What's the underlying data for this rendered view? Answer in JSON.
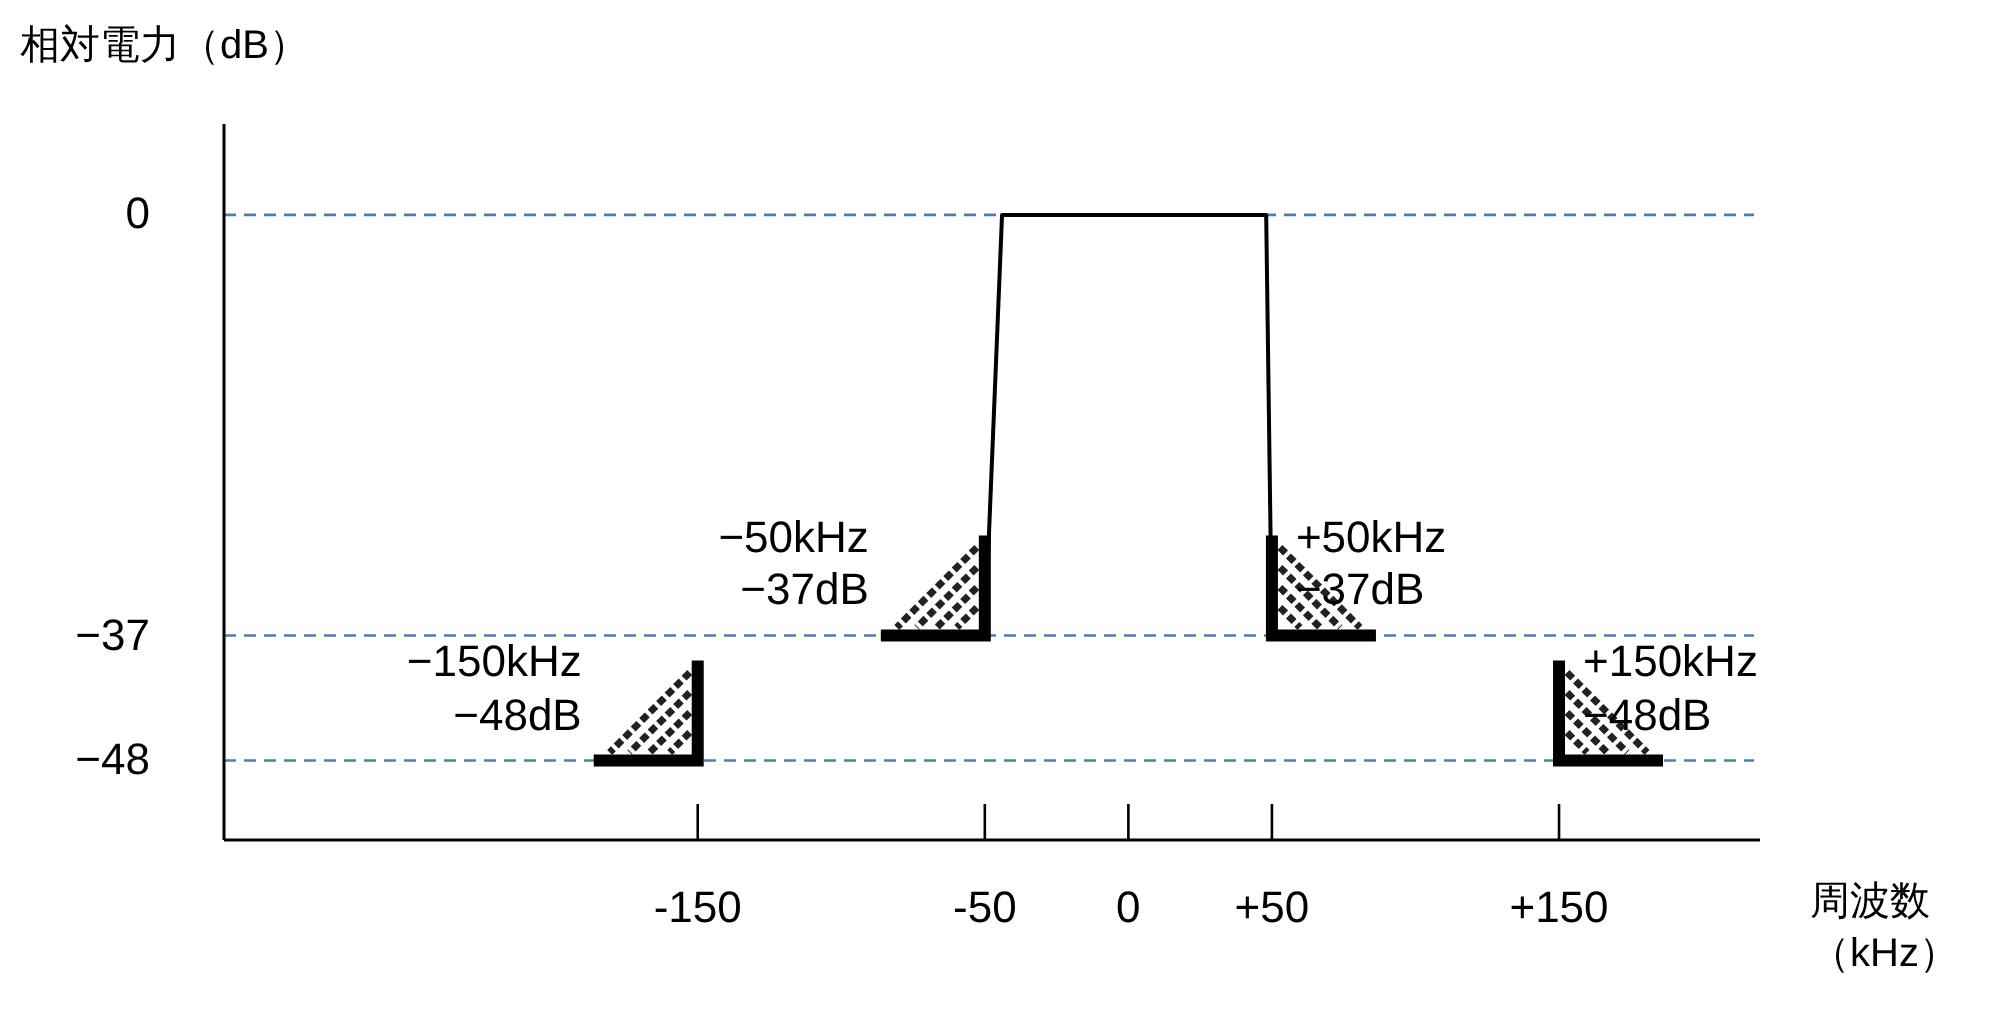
{
  "chart_data": {
    "type": "line",
    "ylabel": "相対電力（dB）",
    "xlabel": "周波数（kHz）",
    "x": [
      -50,
      -44,
      48,
      50
    ],
    "values": [
      -37,
      0,
      0,
      -37
    ],
    "color": "#000000",
    "xlim": [
      -315,
      220
    ],
    "ylim": [
      -55,
      8
    ],
    "xticks": [
      {
        "value": -150,
        "label": "-150"
      },
      {
        "value": -50,
        "label": "-50"
      },
      0,
      {
        "value": 50,
        "label": "+50"
      },
      {
        "value": 150,
        "label": "+150"
      }
    ],
    "yticks": [
      0,
      {
        "value": -37,
        "label": "−37"
      },
      {
        "value": -48,
        "label": "−48"
      }
    ],
    "ref_lines": [
      {
        "axis": "y",
        "value": 0,
        "color": "#4a7ebb",
        "line_style": "dashed"
      },
      {
        "axis": "y",
        "value": -37,
        "color": "#4a7ebb",
        "line_style": "dashed"
      },
      {
        "axis": "y",
        "value": -48,
        "color": "#4a7ebb",
        "line_style": "dashed"
      }
    ],
    "annotations": [
      {
        "text": "−150kHz −48dB",
        "x": -150,
        "y": -48
      },
      {
        "text": "−50kHz −37dB",
        "x": -50,
        "y": -37
      },
      {
        "text": "+50kHz −37dB",
        "x": 50,
        "y": -37
      },
      {
        "text": "+150kHz −48dB",
        "x": 150,
        "y": -48
      }
    ]
  }
}
